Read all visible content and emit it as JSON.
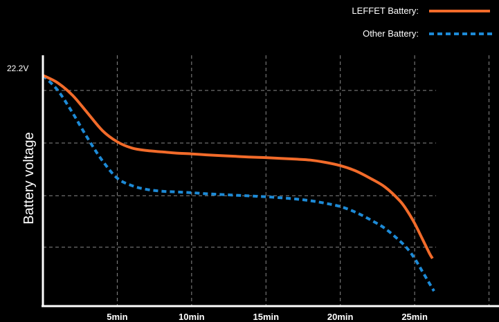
{
  "chart_data": {
    "type": "line",
    "title": "",
    "xlabel": "",
    "ylabel": "Battery voltage",
    "y_top_label": "22.2V",
    "x_unit": "min",
    "xlim": [
      0,
      30.3
    ],
    "ylim": [
      0,
      1
    ],
    "x_ticks": [
      {
        "value": 5,
        "label": "5min"
      },
      {
        "value": 10,
        "label": "10min"
      },
      {
        "value": 15,
        "label": "15min"
      },
      {
        "value": 20,
        "label": "20min"
      },
      {
        "value": 25,
        "label": "25min"
      }
    ],
    "y_grid": [
      0.235,
      0.44,
      0.65,
      0.86
    ],
    "grid": true,
    "legend_position": "top-right",
    "series": [
      {
        "name": "LEFFET Battery:",
        "color": "#f26b2a",
        "dash": "solid",
        "x": [
          0,
          1,
          2,
          3,
          4,
          5,
          6,
          7,
          8,
          9,
          10,
          11,
          12,
          13,
          14,
          15,
          16,
          17,
          18,
          19,
          20,
          21,
          22,
          23,
          24,
          24.5,
          25,
          25.5,
          26,
          26.2
        ],
        "y": [
          0.92,
          0.89,
          0.84,
          0.77,
          0.7,
          0.655,
          0.63,
          0.62,
          0.615,
          0.61,
          0.607,
          0.603,
          0.6,
          0.597,
          0.594,
          0.592,
          0.589,
          0.586,
          0.582,
          0.573,
          0.56,
          0.54,
          0.51,
          0.475,
          0.42,
          0.38,
          0.33,
          0.27,
          0.21,
          0.19
        ]
      },
      {
        "name": "Other Battery:",
        "color": "#1d8ad6",
        "dash": "dashed",
        "x": [
          0,
          1,
          2,
          3,
          4,
          5,
          6,
          7,
          8,
          9,
          10,
          11,
          12,
          13,
          14,
          15,
          16,
          17,
          18,
          19,
          20,
          21,
          22,
          23,
          24,
          24.5,
          25,
          25.5,
          26,
          26.3
        ],
        "y": [
          0.92,
          0.86,
          0.77,
          0.67,
          0.58,
          0.51,
          0.48,
          0.465,
          0.458,
          0.455,
          0.452,
          0.448,
          0.445,
          0.442,
          0.439,
          0.436,
          0.432,
          0.427,
          0.42,
          0.41,
          0.397,
          0.375,
          0.345,
          0.31,
          0.26,
          0.23,
          0.19,
          0.14,
          0.09,
          0.06
        ]
      }
    ]
  }
}
